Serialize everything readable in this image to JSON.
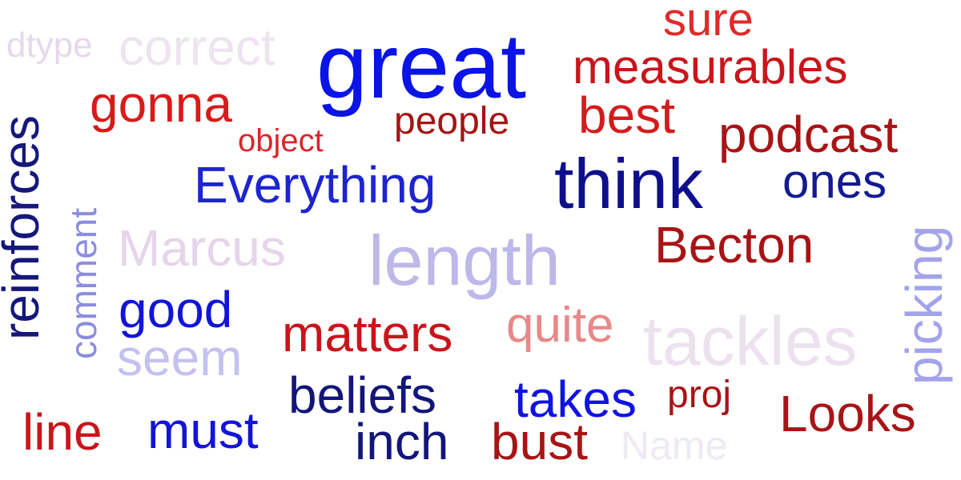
{
  "words": [
    {
      "text": "sure",
      "color": "#e02a2a"
    },
    {
      "text": "dtype",
      "color": "#e6d8ec"
    },
    {
      "text": "correct",
      "color": "#ede4ef"
    },
    {
      "text": "great",
      "color": "#0a14e6"
    },
    {
      "text": "measurables",
      "color": "#c8151b"
    },
    {
      "text": "gonna",
      "color": "#d91a1a"
    },
    {
      "text": "people",
      "color": "#a31515"
    },
    {
      "text": "best",
      "color": "#d41b1b"
    },
    {
      "text": "object",
      "color": "#d9262a"
    },
    {
      "text": "podcast",
      "color": "#a81416"
    },
    {
      "text": "reinforces",
      "color": "#15187a"
    },
    {
      "text": "comment",
      "color": "#8c8ce0"
    },
    {
      "text": "Everything",
      "color": "#1d24d0"
    },
    {
      "text": "think",
      "color": "#0d0f8c"
    },
    {
      "text": "ones",
      "color": "#141a90"
    },
    {
      "text": "Marcus",
      "color": "#e6d5ea"
    },
    {
      "text": "length",
      "color": "#bdb8e8"
    },
    {
      "text": "Becton",
      "color": "#a81416"
    },
    {
      "text": "picking",
      "color": "#a3a3ec"
    },
    {
      "text": "good",
      "color": "#1214d8"
    },
    {
      "text": "matters",
      "color": "#c8151b"
    },
    {
      "text": "quite",
      "color": "#e88888"
    },
    {
      "text": "tackles",
      "color": "#ece2ee"
    },
    {
      "text": "seem",
      "color": "#c5c1ee"
    },
    {
      "text": "beliefs",
      "color": "#12157a"
    },
    {
      "text": "takes",
      "color": "#0f14e0"
    },
    {
      "text": "proj",
      "color": "#a81416"
    },
    {
      "text": "Looks",
      "color": "#a81416"
    },
    {
      "text": "line",
      "color": "#c8151b"
    },
    {
      "text": "must",
      "color": "#1214d8"
    },
    {
      "text": "inch",
      "color": "#12157a"
    },
    {
      "text": "bust",
      "color": "#a81416"
    },
    {
      "text": "Name",
      "color": "#efeaf2"
    }
  ]
}
